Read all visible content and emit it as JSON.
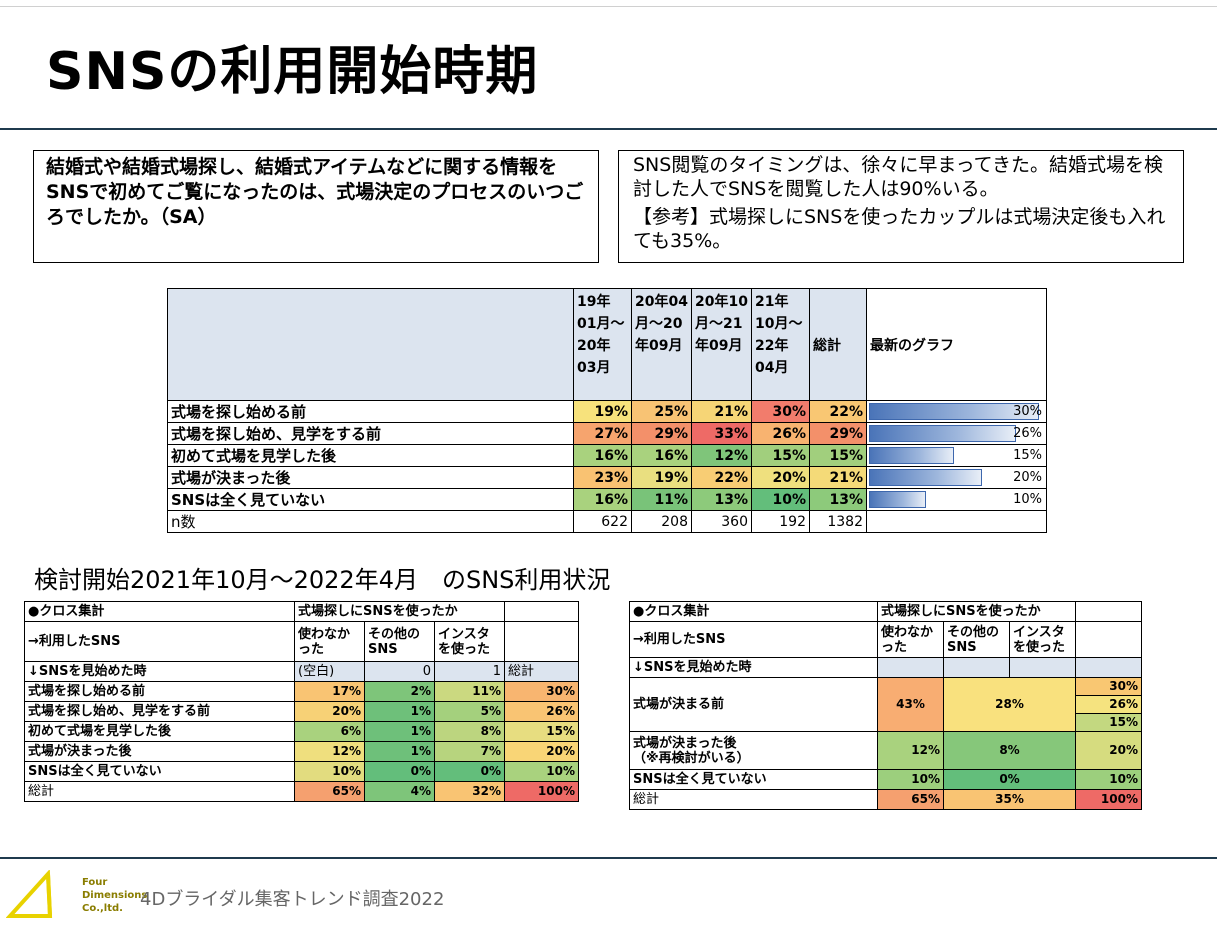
{
  "title": "SNSの利用開始時期",
  "question": "結婚式や結婚式場探し、結婚式アイテムなどに関する情報をSNSで初めてご覧になったのは、式場決定のプロセスのいつごろでしたか。（SA）",
  "note": {
    "line1": "SNS閲覧のタイミングは、徐々に早まってきた。結婚式場を検討した人でSNSを閲覧した人は90%いる。",
    "line2": "【参考】式場探しにSNSを使ったカップルは式場決定後も入れても35%。"
  },
  "main_table": {
    "headers": [
      "19年01月～20年03月",
      "20年04月～20年09月",
      "20年10月～21年09月",
      "21年10月～22年04月",
      "総計",
      "最新のグラフ"
    ],
    "rows": [
      {
        "label": "式場を探し始める前",
        "vals": [
          "19%",
          "25%",
          "21%",
          "30%",
          "22%"
        ],
        "bar": "30%",
        "bar_value": 30
      },
      {
        "label": "式場を探し始め、見学をする前",
        "vals": [
          "27%",
          "29%",
          "33%",
          "26%",
          "29%"
        ],
        "bar": "26%",
        "bar_value": 26
      },
      {
        "label": "初めて式場を見学した後",
        "vals": [
          "16%",
          "16%",
          "12%",
          "15%",
          "15%"
        ],
        "bar": "15%",
        "bar_value": 15
      },
      {
        "label": "式場が決まった後",
        "vals": [
          "23%",
          "19%",
          "22%",
          "20%",
          "21%"
        ],
        "bar": "20%",
        "bar_value": 20
      },
      {
        "label": "SNSは全く見ていない",
        "vals": [
          "16%",
          "11%",
          "13%",
          "10%",
          "13%"
        ],
        "bar": "10%",
        "bar_value": 10
      }
    ],
    "n_label": "n数",
    "n_vals": [
      "622",
      "208",
      "360",
      "192",
      "1382"
    ],
    "colors": [
      [
        "#f7e27c",
        "#f8c374",
        "#f6d576",
        "#f27c6c",
        "#f9c773"
      ],
      [
        "#f6a46e",
        "#f3906a",
        "#ee6a66",
        "#f8b370",
        "#f3906a"
      ],
      [
        "#a9d27e",
        "#a9d27e",
        "#7fc57a",
        "#a1cf7d",
        "#a1cf7d"
      ],
      [
        "#f9c272",
        "#e9df80",
        "#f8cd74",
        "#efe07e",
        "#f4da78"
      ],
      [
        "#a9d27e",
        "#79c379",
        "#8dca7b",
        "#63be7b",
        "#8dca7b"
      ]
    ]
  },
  "subtitle": "検討開始2021年10月～2022年4月　のSNS利用状況",
  "cross_left": {
    "h1": "●クロス集計",
    "h2": "式場探しにSNSを使ったか",
    "h3": "→利用したSNS",
    "c1": "使わなかった",
    "c2": "その他のSNS",
    "c3": "インスタを使った",
    "h4": "↓SNSを見始めた時",
    "v1": "(空白)",
    "v2": "0",
    "v3": "1",
    "total": "総計",
    "rows": [
      {
        "label": "式場を探し始める前",
        "vals": [
          "17%",
          "2%",
          "11%",
          "30%"
        ]
      },
      {
        "label": "式場を探し始め、見学をする前",
        "vals": [
          "20%",
          "1%",
          "5%",
          "26%"
        ]
      },
      {
        "label": "初めて式場を見学した後",
        "vals": [
          "6%",
          "1%",
          "8%",
          "15%"
        ]
      },
      {
        "label": "式場が決まった後",
        "vals": [
          "12%",
          "1%",
          "7%",
          "20%"
        ]
      },
      {
        "label": "SNSは全く見ていない",
        "vals": [
          "10%",
          "0%",
          "0%",
          "10%"
        ]
      }
    ],
    "sum_label": "総計",
    "sum_vals": [
      "65%",
      "4%",
      "32%",
      "100%"
    ]
  },
  "cross_right": {
    "h1": "●クロス集計",
    "h2": "式場探しにSNSを使ったか",
    "h3": "→利用したSNS",
    "c1": "使わなかった",
    "c2": "その他のSNS",
    "c3": "インスタを使った",
    "h4": "↓SNSを見始めた時",
    "r1_label": "式場が決まる前",
    "r1_a": "43%",
    "r1_b": "28%",
    "r1_t": [
      "30%",
      "26%",
      "15%"
    ],
    "r2_label": "式場が決まった後",
    "r2_label2": "（※再検討がいる）",
    "r2_a": "12%",
    "r2_b": "8%",
    "r2_t": "20%",
    "r3_label": "SNSは全く見ていない",
    "r3_a": "10%",
    "r3_b": "0%",
    "r3_t": "10%",
    "sum_label": "総計",
    "sum_a": "65%",
    "sum_b": "35%",
    "sum_t": "100%"
  },
  "footer": {
    "logo1": "Four",
    "logo2": "Dimensions",
    "logo3": "Co.,ltd.",
    "text": "4Dブライダル集客トレンド調査2022"
  }
}
